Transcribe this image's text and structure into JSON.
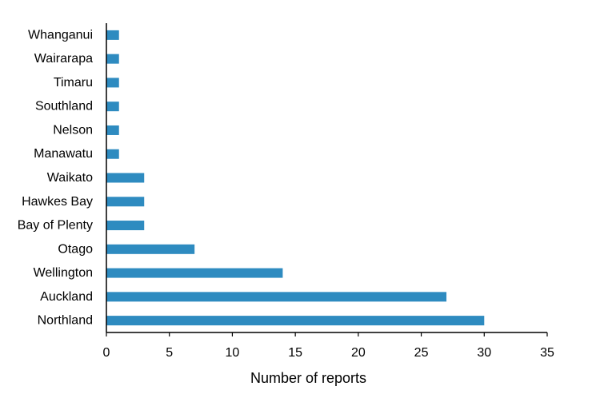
{
  "chart_data": {
    "type": "bar",
    "orientation": "horizontal",
    "categories": [
      "Whanganui",
      "Wairarapa",
      "Timaru",
      "Southland",
      "Nelson",
      "Manawatu",
      "Waikato",
      "Hawkes Bay",
      "Bay of Plenty",
      "Otago",
      "Wellington",
      "Auckland",
      "Northland"
    ],
    "values": [
      1,
      1,
      1,
      1,
      1,
      1,
      3,
      3,
      3,
      7,
      14,
      27,
      30
    ],
    "xlabel": "Number of reports",
    "ylabel": "",
    "xlim": [
      0,
      35
    ],
    "xticks": [
      0,
      5,
      10,
      15,
      20,
      25,
      30,
      35
    ],
    "grid": false,
    "legend": "none",
    "bar_color": "#2E8BC0"
  }
}
